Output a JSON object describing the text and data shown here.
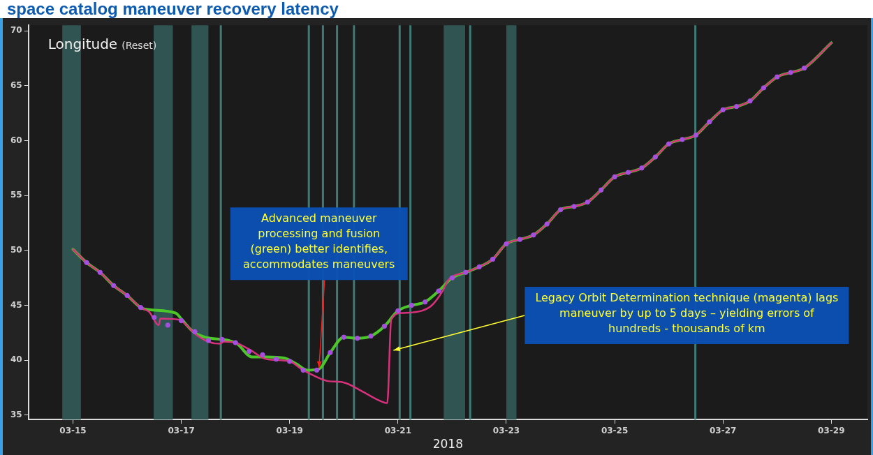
{
  "chart_data": {
    "type": "line",
    "title": "space catalog maneuver recovery latency",
    "ylabel": "Longitude",
    "xlabel": "2018",
    "annotations": [
      "(Reset)",
      {
        "text": "Advanced maneuver processing and fusion (green) better identifies, accommodates maneuvers",
        "x": "2018-03-19T13:00",
        "y": 39.3
      },
      {
        "text": "Legacy Orbit Determination technique (magenta) lags maneuver by up to 5 days – yielding errors of hundreds - thousands of km",
        "x": "2018-03-20T22:00",
        "y": 40.9
      }
    ],
    "xlim": [
      "2018-03-14T04:15",
      "2018-03-29T16:00"
    ],
    "xticks": [
      {
        "value": "2018-03-15",
        "label": "03-15"
      },
      {
        "value": "2018-03-17",
        "label": "03-17"
      },
      {
        "value": "2018-03-19",
        "label": "03-19"
      },
      {
        "value": "2018-03-21",
        "label": "03-21"
      },
      {
        "value": "2018-03-23",
        "label": "03-23"
      },
      {
        "value": "2018-03-25",
        "label": "03-25"
      },
      {
        "value": "2018-03-27",
        "label": "03-27"
      },
      {
        "value": "2018-03-29",
        "label": "03-29"
      }
    ],
    "ylim": [
      34.6,
      70.5
    ],
    "yticks": [
      35,
      40,
      45,
      50,
      55,
      60,
      65,
      70
    ],
    "bands": [
      {
        "axis": "x",
        "from": "2018-03-14T19:15",
        "to": "2018-03-15T03:30",
        "color": "#2f5452"
      },
      {
        "axis": "x",
        "from": "2018-03-16T11:45",
        "to": "2018-03-16T20:15",
        "color": "#2f5452"
      },
      {
        "axis": "x",
        "from": "2018-03-17T04:30",
        "to": "2018-03-17T12:00",
        "color": "#2f5452"
      },
      {
        "axis": "x",
        "from": "2018-03-21T20:15",
        "to": "2018-03-22T05:45",
        "color": "#2f5452"
      },
      {
        "axis": "x",
        "from": "2018-03-23T00:00",
        "to": "2018-03-23T04:30",
        "color": "#2f5452"
      }
    ],
    "ref_lines": [
      {
        "axis": "x",
        "value": "2018-03-17T17:30",
        "color": "#3f7a76"
      },
      {
        "axis": "x",
        "value": "2018-03-19T08:30",
        "color": "#3f7a76"
      },
      {
        "axis": "x",
        "value": "2018-03-19T14:45",
        "color": "#3f7a76"
      },
      {
        "axis": "x",
        "value": "2018-03-19T21:00",
        "color": "#3f7a76"
      },
      {
        "axis": "x",
        "value": "2018-03-20T04:30",
        "color": "#3f7a76"
      },
      {
        "axis": "x",
        "value": "2018-03-21T00:45",
        "color": "#3f7a76"
      },
      {
        "axis": "x",
        "value": "2018-03-21T05:30",
        "color": "#3f7a76"
      },
      {
        "axis": "x",
        "value": "2018-03-22T08:00",
        "color": "#3f7a76"
      },
      {
        "axis": "x",
        "value": "2018-03-26T11:45",
        "color": "#3f7a76"
      }
    ],
    "series": [
      {
        "type": "line",
        "color": "#4cc72a",
        "x": [
          "2018-03-15T00:00",
          "2018-03-15T06:00",
          "2018-03-15T12:00",
          "2018-03-15T18:00",
          "2018-03-16T00:00",
          "2018-03-16T06:00",
          "2018-03-16T09:45",
          "2018-03-16T21:30",
          "2018-03-17T00:15",
          "2018-03-17T05:15",
          "2018-03-17T10:30",
          "2018-03-17T21:00",
          "2018-03-18T00:45",
          "2018-03-18T07:15",
          "2018-03-18T13:45",
          "2018-03-18T21:30",
          "2018-03-19T02:45",
          "2018-03-19T08:00",
          "2018-03-19T13:00",
          "2018-03-19T18:00",
          "2018-03-20T00:00",
          "2018-03-20T06:00",
          "2018-03-20T12:00",
          "2018-03-20T18:00",
          "2018-03-21T00:00",
          "2018-03-21T06:00",
          "2018-03-21T12:00",
          "2018-03-21T18:00",
          "2018-03-22T00:00",
          "2018-03-22T06:00",
          "2018-03-22T12:00",
          "2018-03-22T18:00",
          "2018-03-23T00:00",
          "2018-03-23T06:00",
          "2018-03-23T12:00",
          "2018-03-23T18:00",
          "2018-03-24T00:00",
          "2018-03-24T06:00",
          "2018-03-24T12:00",
          "2018-03-24T18:00",
          "2018-03-25T00:00",
          "2018-03-25T06:00",
          "2018-03-25T12:00",
          "2018-03-25T18:00",
          "2018-03-26T00:00",
          "2018-03-26T06:00",
          "2018-03-26T12:00",
          "2018-03-26T18:00",
          "2018-03-27T00:00",
          "2018-03-27T06:00",
          "2018-03-27T12:00",
          "2018-03-27T18:00",
          "2018-03-28T00:00",
          "2018-03-28T06:00",
          "2018-03-28T12:00",
          "2018-03-29T00:00"
        ],
        "values": [
          50.1,
          48.9,
          48.0,
          46.8,
          45.9,
          44.8,
          44.6,
          44.3,
          43.7,
          42.6,
          42.1,
          41.8,
          41.5,
          40.3,
          40.3,
          40.2,
          39.7,
          39.1,
          39.2,
          40.7,
          42.1,
          42.0,
          42.2,
          43.1,
          44.5,
          45.0,
          45.3,
          46.3,
          47.5,
          48.0,
          48.5,
          49.2,
          50.6,
          51.0,
          51.4,
          52.4,
          53.7,
          54.0,
          54.4,
          55.5,
          56.7,
          57.1,
          57.5,
          58.5,
          59.7,
          60.1,
          60.5,
          61.7,
          62.8,
          63.1,
          63.6,
          64.8,
          65.8,
          66.2,
          66.6,
          68.9
        ]
      },
      {
        "type": "line",
        "color": "#d8327c",
        "x": [
          "2018-03-15T00:00",
          "2018-03-15T06:00",
          "2018-03-15T12:00",
          "2018-03-15T18:00",
          "2018-03-16T00:00",
          "2018-03-16T06:00",
          "2018-03-16T09:45",
          "2018-03-16T14:00",
          "2018-03-16T14:45",
          "2018-03-16T22:45",
          "2018-03-17T06:45",
          "2018-03-17T11:45",
          "2018-03-17T17:00",
          "2018-03-17T19:00",
          "2018-03-18T00:00",
          "2018-03-18T06:00",
          "2018-03-18T13:45",
          "2018-03-19T00:00",
          "2018-03-19T05:15",
          "2018-03-19T11:45",
          "2018-03-19T17:00",
          "2018-03-19T23:30",
          "2018-03-20T08:45",
          "2018-03-20T15:00",
          "2018-03-20T19:15",
          "2018-03-20T21:00",
          "2018-03-21T01:30",
          "2018-03-21T10:30",
          "2018-03-21T15:00",
          "2018-03-21T19:45",
          "2018-03-21T22:15",
          "2018-03-22T06:00",
          "2018-03-22T12:00",
          "2018-03-22T18:00",
          "2018-03-23T00:00",
          "2018-03-23T06:00",
          "2018-03-23T12:00",
          "2018-03-23T18:00",
          "2018-03-24T00:00",
          "2018-03-24T06:00",
          "2018-03-24T12:00",
          "2018-03-24T18:00",
          "2018-03-25T00:00",
          "2018-03-25T06:00",
          "2018-03-25T12:00",
          "2018-03-25T18:00",
          "2018-03-26T00:00",
          "2018-03-26T06:00",
          "2018-03-26T12:00",
          "2018-03-26T18:00",
          "2018-03-27T00:00",
          "2018-03-27T06:00",
          "2018-03-27T12:00",
          "2018-03-27T18:00",
          "2018-03-28T00:00",
          "2018-03-28T06:00",
          "2018-03-28T12:00",
          "2018-03-29T00:00"
        ],
        "values": [
          50.1,
          48.9,
          48.0,
          46.8,
          45.9,
          44.8,
          44.4,
          43.2,
          43.8,
          43.7,
          42.3,
          41.7,
          41.5,
          41.7,
          41.6,
          41.0,
          40.1,
          39.9,
          39.2,
          38.5,
          38.1,
          38.0,
          37.1,
          36.4,
          36.1,
          43.7,
          44.3,
          44.5,
          45.0,
          46.3,
          47.3,
          48.0,
          48.5,
          49.2,
          50.6,
          51.0,
          51.4,
          52.4,
          53.7,
          54.0,
          54.4,
          55.5,
          56.7,
          57.1,
          57.5,
          58.5,
          59.7,
          60.1,
          60.5,
          61.7,
          62.8,
          63.1,
          63.6,
          64.8,
          65.8,
          66.2,
          66.6,
          68.9
        ]
      },
      {
        "type": "scatter",
        "color": "#a64fe0",
        "marker": "circle",
        "x": [
          "2018-03-15T06:00",
          "2018-03-15T12:00",
          "2018-03-15T18:00",
          "2018-03-16T00:00",
          "2018-03-16T06:00",
          "2018-03-16T12:00",
          "2018-03-16T18:00",
          "2018-03-17T00:00",
          "2018-03-17T06:00",
          "2018-03-17T12:00",
          "2018-03-17T18:00",
          "2018-03-18T00:00",
          "2018-03-18T06:00",
          "2018-03-18T12:00",
          "2018-03-18T18:00",
          "2018-03-19T00:00",
          "2018-03-19T06:00",
          "2018-03-19T12:00",
          "2018-03-19T18:00",
          "2018-03-20T00:00",
          "2018-03-20T06:00",
          "2018-03-20T12:00",
          "2018-03-20T18:00",
          "2018-03-21T00:00",
          "2018-03-21T06:00",
          "2018-03-21T12:00",
          "2018-03-21T18:00",
          "2018-03-22T00:00",
          "2018-03-22T06:00",
          "2018-03-22T12:00",
          "2018-03-22T18:00",
          "2018-03-23T00:00",
          "2018-03-23T06:00",
          "2018-03-23T12:00",
          "2018-03-23T18:00",
          "2018-03-24T00:00",
          "2018-03-24T06:00",
          "2018-03-24T12:00",
          "2018-03-24T18:00",
          "2018-03-25T00:00",
          "2018-03-25T06:00",
          "2018-03-25T12:00",
          "2018-03-25T18:00",
          "2018-03-26T00:00",
          "2018-03-26T06:00",
          "2018-03-26T12:00",
          "2018-03-26T18:00",
          "2018-03-27T00:00",
          "2018-03-27T06:00",
          "2018-03-27T12:00",
          "2018-03-27T18:00",
          "2018-03-28T00:00",
          "2018-03-28T06:00",
          "2018-03-28T12:00"
        ],
        "values": [
          48.9,
          48.0,
          46.8,
          45.9,
          44.8,
          43.9,
          43.2,
          43.6,
          42.6,
          41.8,
          41.9,
          41.6,
          40.8,
          40.5,
          40.1,
          39.9,
          39.1,
          39.1,
          40.7,
          42.1,
          42.0,
          42.2,
          43.1,
          44.5,
          45.0,
          45.3,
          46.3,
          47.5,
          48.0,
          48.5,
          49.2,
          50.6,
          51.0,
          51.4,
          52.4,
          53.7,
          54.0,
          54.4,
          55.5,
          56.7,
          57.1,
          57.5,
          58.5,
          59.7,
          60.1,
          60.5,
          61.7,
          62.8,
          63.1,
          63.6,
          64.8,
          65.8,
          66.2,
          66.6
        ]
      }
    ]
  }
}
